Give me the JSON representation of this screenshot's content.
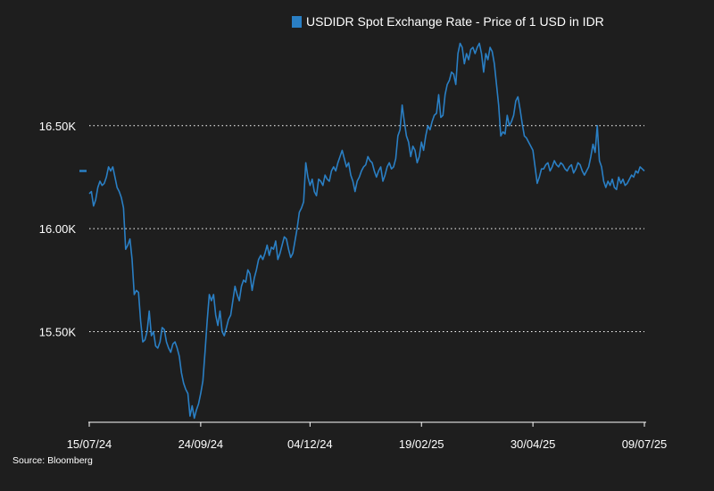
{
  "chart_data": {
    "type": "line",
    "legend": {
      "label": "USDIDR Spot Exchange Rate - Price of 1 USD in IDR",
      "position": "top"
    },
    "series": [
      {
        "name": "USDIDR Spot Exchange Rate - Price of 1 USD in IDR",
        "color": "#2a7fc4",
        "last_value": 16280,
        "x_start": 0,
        "x_end": 259,
        "values": [
          16170,
          16180,
          16110,
          16140,
          16200,
          16230,
          16210,
          16220,
          16250,
          16300,
          16280,
          16300,
          16250,
          16200,
          16180,
          16150,
          16100,
          15900,
          15920,
          15950,
          15850,
          15680,
          15700,
          15690,
          15550,
          15450,
          15460,
          15500,
          15600,
          15480,
          15500,
          15430,
          15420,
          15450,
          15520,
          15510,
          15450,
          15420,
          15400,
          15440,
          15450,
          15420,
          15380,
          15300,
          15250,
          15220,
          15200,
          15090,
          15140,
          15080,
          15120,
          15150,
          15200,
          15260,
          15400,
          15550,
          15680,
          15650,
          15680,
          15580,
          15530,
          15600,
          15500,
          15480,
          15520,
          15560,
          15580,
          15650,
          15720,
          15680,
          15650,
          15720,
          15750,
          15740,
          15800,
          15780,
          15700,
          15760,
          15800,
          15850,
          15870,
          15850,
          15880,
          15920,
          15870,
          15910,
          15900,
          15940,
          15850,
          15880,
          15920,
          15960,
          15950,
          15900,
          15860,
          15880,
          15940,
          16000,
          16080,
          16100,
          16130,
          16320,
          16250,
          16210,
          16240,
          16180,
          16160,
          16240,
          16230,
          16210,
          16260,
          16240,
          16230,
          16280,
          16300,
          16280,
          16320,
          16350,
          16380,
          16340,
          16300,
          16320,
          16260,
          16230,
          16180,
          16230,
          16250,
          16280,
          16300,
          16310,
          16350,
          16330,
          16320,
          16280,
          16250,
          16280,
          16300,
          16230,
          16260,
          16300,
          16320,
          16290,
          16300,
          16340,
          16450,
          16480,
          16600,
          16520,
          16450,
          16420,
          16350,
          16400,
          16380,
          16320,
          16350,
          16420,
          16380,
          16450,
          16500,
          16480,
          16520,
          16550,
          16560,
          16650,
          16540,
          16550,
          16650,
          16700,
          16720,
          16760,
          16750,
          16700,
          16850,
          16900,
          16880,
          16800,
          16850,
          16820,
          16870,
          16880,
          16850,
          16880,
          16900,
          16850,
          16760,
          16850,
          16820,
          16880,
          16860,
          16800,
          16700,
          16600,
          16450,
          16470,
          16460,
          16550,
          16500,
          16520,
          16550,
          16620,
          16640,
          16580,
          16510,
          16450,
          16440,
          16420,
          16400,
          16380,
          16300,
          16220,
          16250,
          16290,
          16290,
          16310,
          16320,
          16280,
          16300,
          16330,
          16310,
          16300,
          16320,
          16310,
          16290,
          16280,
          16300,
          16310,
          16270,
          16290,
          16320,
          16310,
          16280,
          16260,
          16280,
          16300,
          16350,
          16410,
          16370,
          16500,
          16330,
          16300,
          16230,
          16200,
          16230,
          16210,
          16240,
          16200,
          16190,
          16250,
          16220,
          16240,
          16210,
          16220,
          16240,
          16260,
          16250,
          16280,
          16270,
          16300,
          16290,
          16280
        ]
      }
    ],
    "x_ticks": [
      "15/07/24",
      "24/09/24",
      "04/12/24",
      "19/02/25",
      "30/04/25",
      "09/07/25"
    ],
    "x_tick_index": [
      0,
      52,
      103,
      155,
      207,
      259
    ],
    "y_ticks": [
      {
        "value": 15500,
        "label": "15.50K"
      },
      {
        "value": 16000,
        "label": "16.00K"
      },
      {
        "value": 16500,
        "label": "16.50K"
      }
    ],
    "ylim": [
      15060,
      16980
    ],
    "grid": "horizontal-dotted",
    "source": "Source: Bloomberg"
  }
}
